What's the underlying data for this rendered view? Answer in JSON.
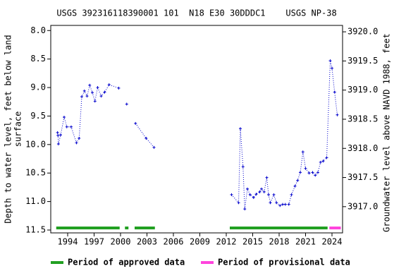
{
  "chart_data": {
    "type": "line",
    "title": "USGS 392316118390001 101  N18 E30 30DDDC1    USGS NP-38",
    "ylabel": [
      "Depth to water level, feet below land",
      "surface"
    ],
    "y2label": "Groundwater level above NAVD 1988, feet",
    "xlim": [
      1992.08,
      2025.2
    ],
    "xticks": [
      1994,
      1997,
      2000,
      2003,
      2006,
      2009,
      2012,
      2015,
      2018,
      2021,
      2024
    ],
    "ylim": [
      7.91,
      11.55
    ],
    "invert_y": true,
    "yticks": [
      {
        "value": 8,
        "label": "8.0"
      },
      8.5,
      {
        "value": 9,
        "label": "9.0"
      },
      9.5,
      {
        "value": 10,
        "label": "10.0"
      },
      10.5,
      {
        "value": 11,
        "label": "11.0"
      },
      11.5
    ],
    "y2lim": [
      3916.55,
      3920.11
    ],
    "y2ticks": [
      {
        "value": 3920,
        "label": "3920.0"
      },
      3919.5,
      {
        "value": 3919,
        "label": "3919.0"
      },
      3918.5,
      {
        "value": 3918,
        "label": "3918.0"
      },
      3917.5,
      {
        "value": 3917,
        "label": "3917.0"
      }
    ],
    "series": [
      {
        "color": "#0000cc",
        "x": [
          1992.85,
          1992.9,
          1992.95,
          1993.2,
          1993.6,
          1993.9,
          1994.4,
          1995.0,
          1995.3,
          1995.6,
          1995.9,
          1996.2,
          1996.5,
          1996.8,
          1997.1,
          1997.4,
          1997.8,
          1998.2,
          1998.7,
          1999.8,
          null,
          2000.7,
          null,
          2001.7,
          2002.9,
          2003.8,
          null,
          2012.6,
          2013.4,
          2013.6,
          2013.9,
          2014.1,
          2014.4,
          2014.7,
          2015.1,
          2015.4,
          2015.8,
          2016.0,
          2016.3,
          2016.6,
          2016.8,
          2017.0,
          2017.4,
          2017.7,
          2018.1,
          2018.4,
          2018.7,
          2019.1,
          2019.4,
          2019.8,
          2020.1,
          2020.4,
          2020.7,
          2021.0,
          2021.4,
          2021.8,
          2022.1,
          2022.4,
          2022.7,
          2023.0,
          2023.4,
          2023.8,
          2024.0,
          2024.3,
          2024.6
        ],
        "values": [
          9.79,
          9.84,
          9.99,
          9.83,
          9.52,
          9.69,
          9.69,
          9.97,
          9.89,
          9.16,
          9.06,
          9.15,
          8.96,
          9.09,
          9.24,
          9.0,
          9.15,
          9.08,
          8.95,
          9.01,
          null,
          9.29,
          null,
          9.63,
          9.89,
          10.05,
          null,
          10.88,
          11.02,
          9.72,
          10.39,
          11.13,
          10.78,
          10.88,
          10.93,
          10.87,
          10.83,
          10.78,
          10.83,
          10.58,
          10.88,
          11.02,
          10.88,
          11.02,
          11.07,
          11.05,
          11.05,
          11.05,
          10.88,
          10.73,
          10.63,
          10.49,
          10.13,
          10.42,
          10.5,
          10.49,
          10.54,
          10.49,
          10.31,
          10.29,
          10.23,
          8.53,
          8.66,
          9.08,
          9.48
        ]
      }
    ],
    "periods": [
      {
        "name": "Period of approved data",
        "color": "#22a022",
        "ranges": [
          [
            1992.7,
            1999.9
          ],
          [
            2000.5,
            2000.9
          ],
          [
            2001.6,
            2003.9
          ],
          [
            2012.4,
            2023.5
          ]
        ]
      },
      {
        "name": "Period of provisional data",
        "color": "#ff44dd",
        "ranges": [
          [
            2023.7,
            2025.0
          ]
        ]
      }
    ]
  }
}
